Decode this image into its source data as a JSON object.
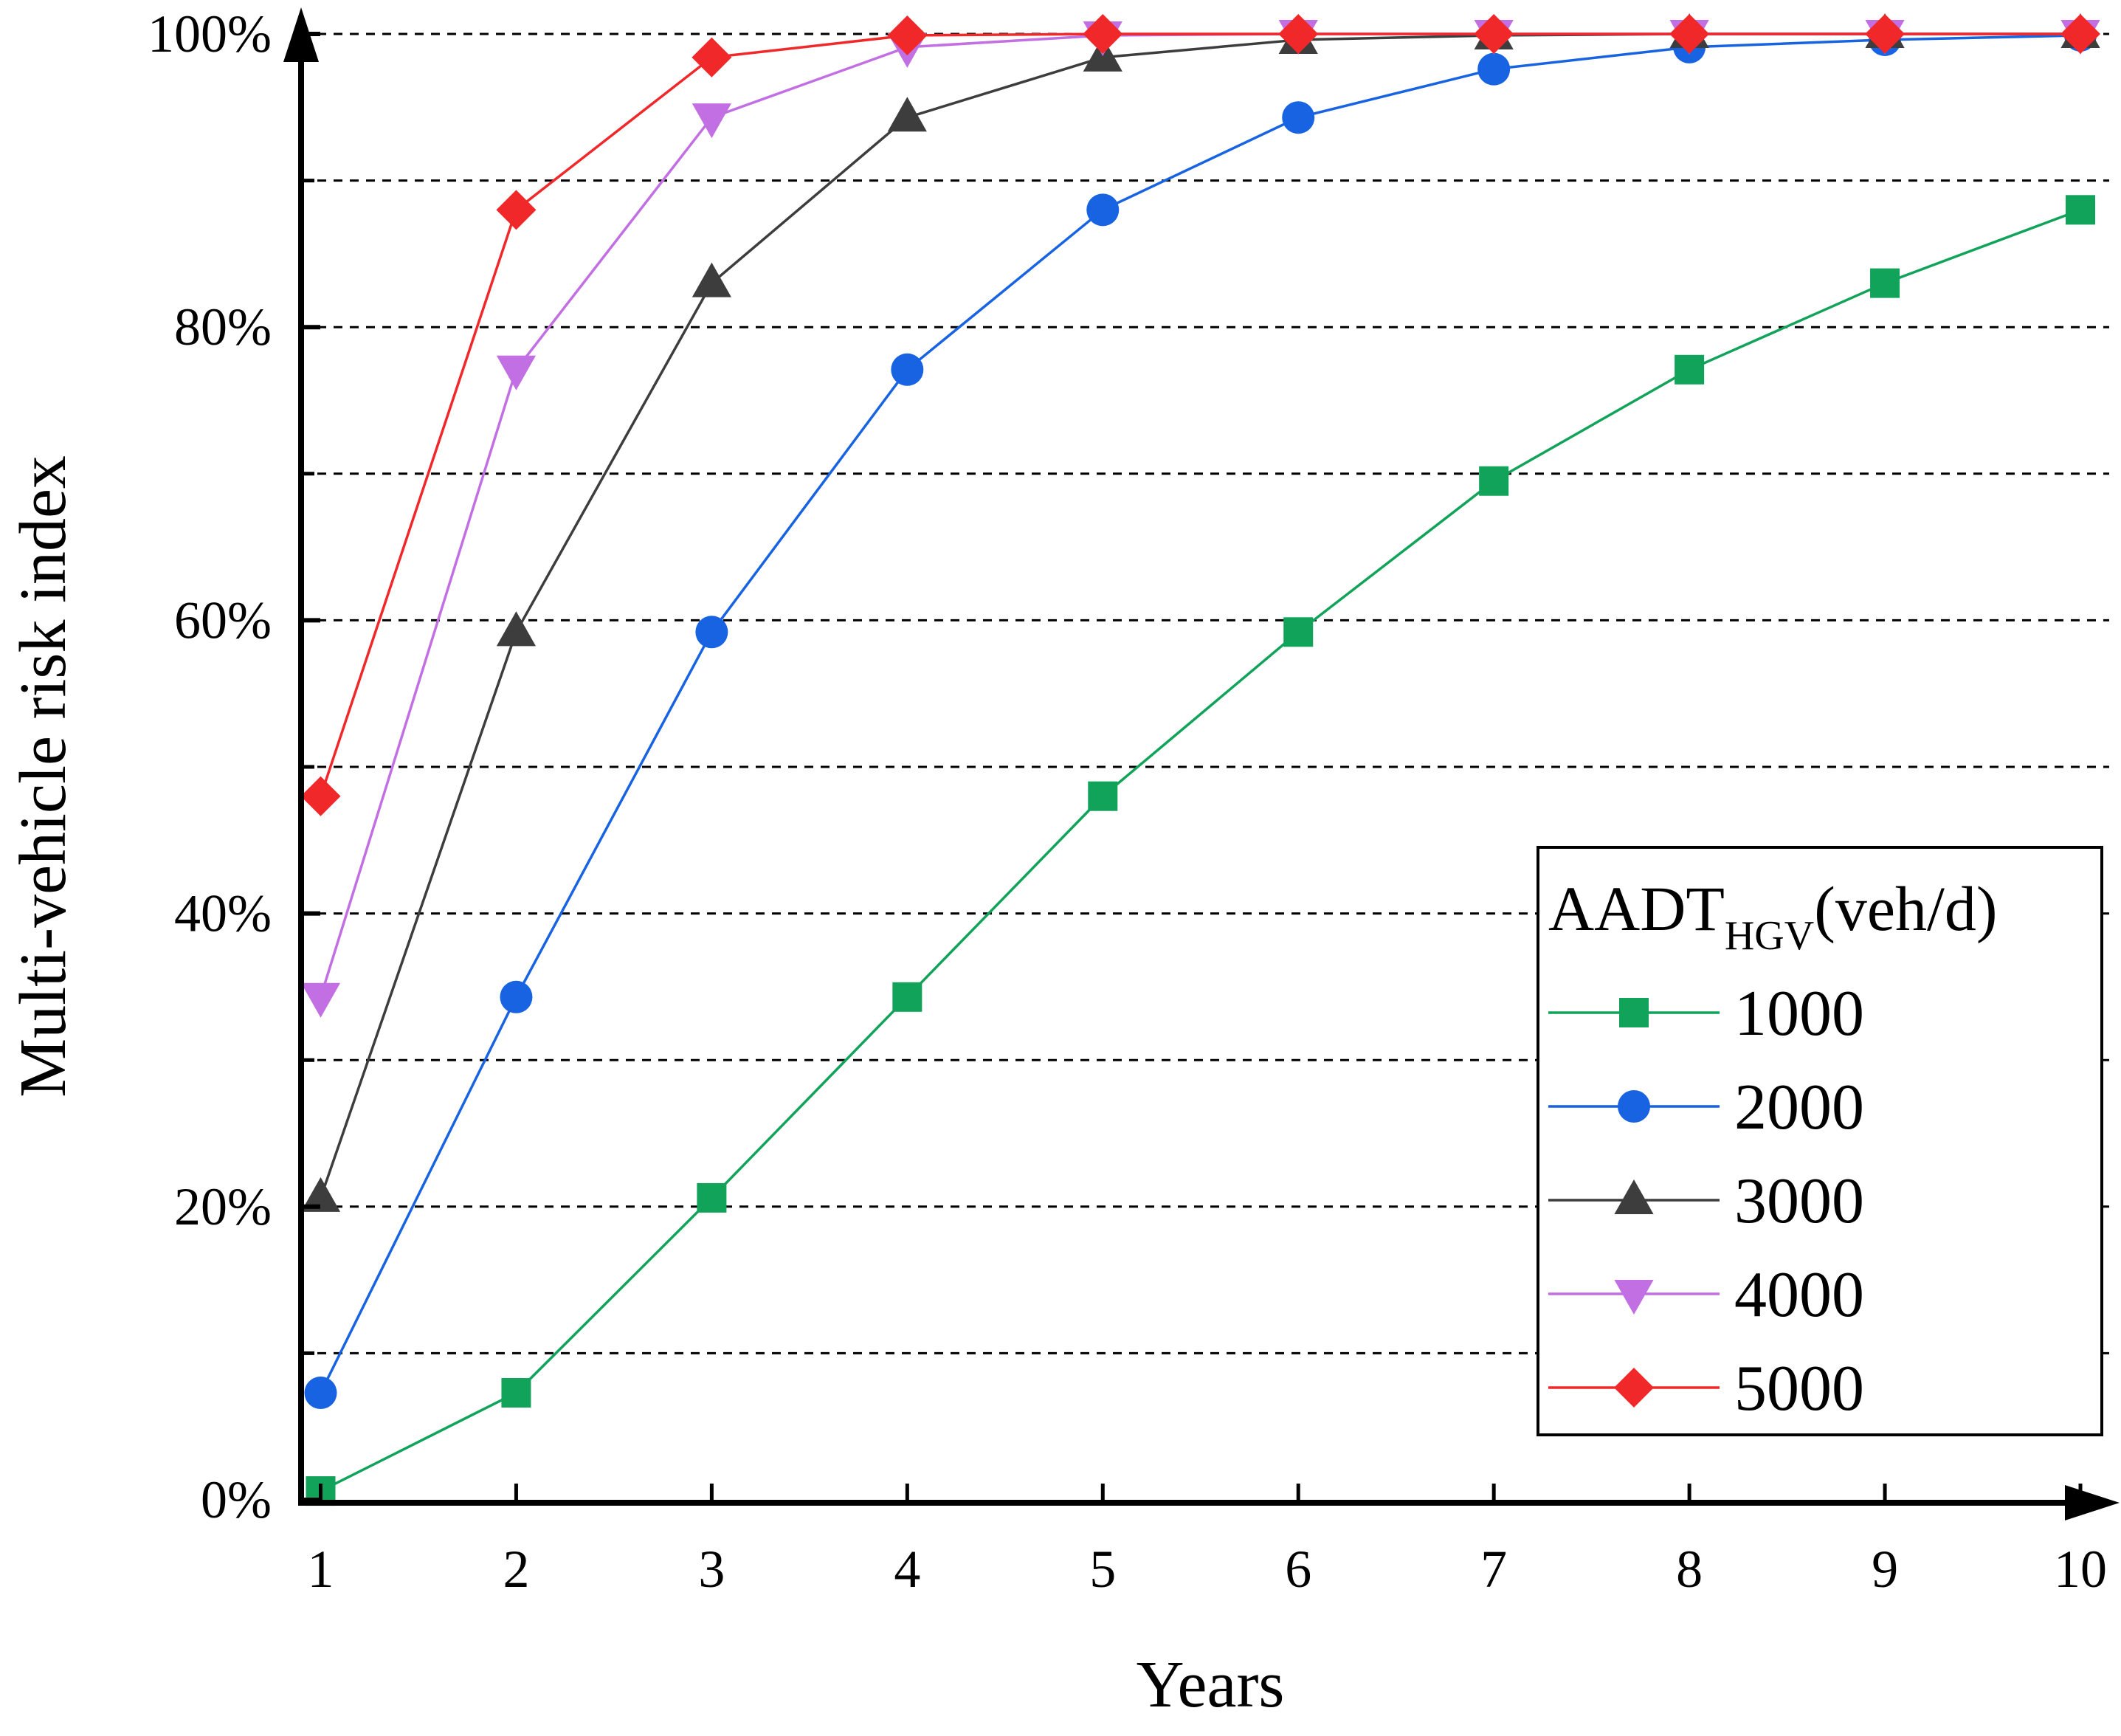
{
  "chart_data": {
    "type": "line",
    "title": "",
    "xlabel": "Years",
    "ylabel": "Multi-vehicle risk index",
    "x": [
      1,
      2,
      3,
      4,
      5,
      6,
      7,
      8,
      9,
      10
    ],
    "xlim": [
      0.9,
      10.2
    ],
    "ylim": [
      0,
      100
    ],
    "xticks": [
      "1",
      "2",
      "3",
      "4",
      "5",
      "6",
      "7",
      "8",
      "9",
      "10"
    ],
    "yticks": [
      {
        "value": 0,
        "label": "0%"
      },
      {
        "value": 20,
        "label": "20%"
      },
      {
        "value": 40,
        "label": "40%"
      },
      {
        "value": 60,
        "label": "60%"
      },
      {
        "value": 80,
        "label": "80%"
      },
      {
        "value": 100,
        "label": "100%"
      }
    ],
    "grid_values": [
      10,
      20,
      30,
      40,
      50,
      60,
      70,
      80,
      90,
      100
    ],
    "grid": "dashed horizontal",
    "legend": {
      "title_main": "AADT",
      "title_sub": "HGV",
      "title_unit": "(veh/d)",
      "position": "bottom-right"
    },
    "series": [
      {
        "name": "1000",
        "color": "#12A35A",
        "marker": "square",
        "values": [
          0.6,
          7.3,
          20.6,
          34.3,
          48.0,
          59.2,
          69.5,
          77.1,
          83.0,
          88.0
        ]
      },
      {
        "name": "2000",
        "color": "#1763E1",
        "marker": "circle",
        "values": [
          7.3,
          34.3,
          59.2,
          77.1,
          88.0,
          94.3,
          97.6,
          99.1,
          99.6,
          99.9
        ]
      },
      {
        "name": "3000",
        "color": "#3D3D3D",
        "marker": "triangle-up",
        "values": [
          20.6,
          59.2,
          83.0,
          94.3,
          98.4,
          99.6,
          99.9,
          100,
          100,
          100
        ]
      },
      {
        "name": "4000",
        "color": "#C26FE3",
        "marker": "triangle-down",
        "values": [
          34.3,
          77.1,
          94.3,
          99.1,
          99.9,
          100,
          100,
          100,
          100,
          100
        ]
      },
      {
        "name": "5000",
        "color": "#F0282A",
        "marker": "diamond",
        "values": [
          48.0,
          88.0,
          98.4,
          99.9,
          100,
          100,
          100,
          100,
          100,
          100
        ]
      }
    ]
  }
}
